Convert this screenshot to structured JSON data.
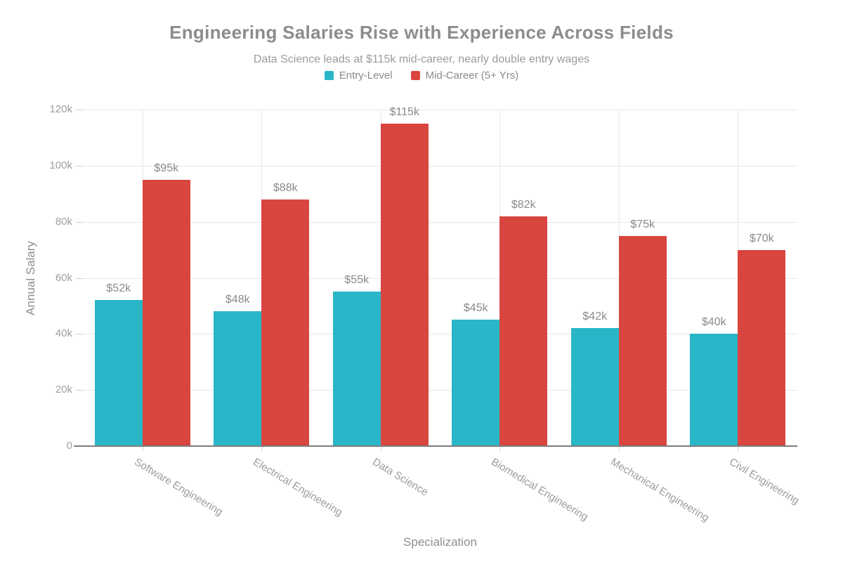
{
  "chart_data": {
    "type": "bar",
    "title": "Engineering Salaries Rise with Experience Across Fields",
    "subtitle": "Data Science leads at $115k mid-career, nearly double entry wages",
    "xlabel": "Specialization",
    "ylabel": "Annual Salary",
    "categories": [
      "Software Engineering",
      "Electrical Engineering",
      "Data Science",
      "Biomedical Engineering",
      "Mechanical Engineering",
      "Civil Engineering"
    ],
    "series": [
      {
        "name": "Entry-Level",
        "color": "#29b6c8",
        "values": [
          52000,
          48000,
          55000,
          45000,
          42000,
          40000
        ],
        "value_labels": [
          "$52k",
          "$48k",
          "$55k",
          "$45k",
          "$42k",
          "$40k"
        ]
      },
      {
        "name": "Mid-Career (5+ Yrs)",
        "color": "#d9453f",
        "values": [
          95000,
          88000,
          115000,
          82000,
          75000,
          70000
        ],
        "value_labels": [
          "$95k",
          "$88k",
          "$115k",
          "$82k",
          "$75k",
          "$70k"
        ]
      }
    ],
    "y_ticks": [
      {
        "value": 0,
        "label": "0"
      },
      {
        "value": 20000,
        "label": "20k"
      },
      {
        "value": 40000,
        "label": "40k"
      },
      {
        "value": 60000,
        "label": "60k"
      },
      {
        "value": 80000,
        "label": "80k"
      },
      {
        "value": 100000,
        "label": "100k"
      },
      {
        "value": 120000,
        "label": "120k"
      }
    ],
    "ylim": [
      0,
      120000
    ],
    "grid": true,
    "legend_position": "top",
    "style_colors": {
      "title_text": "#8c8c8c",
      "axis_text": "#9b9b9b",
      "gridline": "#e8e8e8",
      "baseline": "#7d7d7d"
    }
  }
}
